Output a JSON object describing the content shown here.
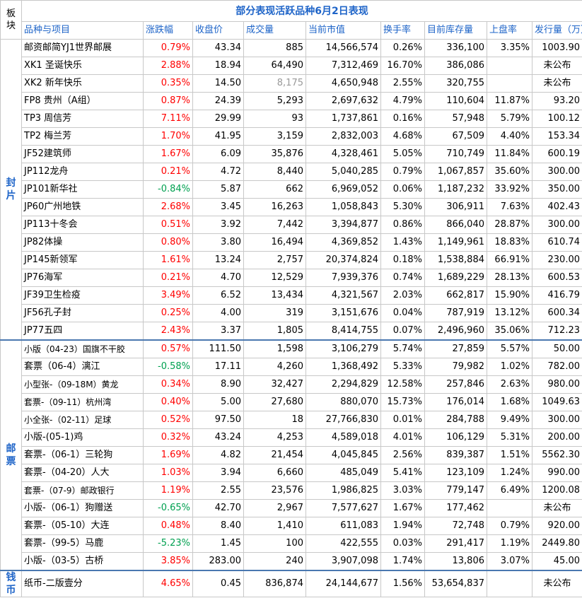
{
  "title": "部分表现活跃品种6月2日表现",
  "sector_header": "板块",
  "columns": [
    "品种与项目",
    "涨跌幅",
    "收盘价",
    "成交量",
    "当前市值",
    "换手率",
    "目前库存量",
    "上盘率",
    "发行量（万）"
  ],
  "sectors": [
    {
      "label": "封片",
      "rows": [
        {
          "name": "邮资邮简YJ1世界邮展",
          "change": "0.79%",
          "dir": "up",
          "close": "43.34",
          "volume": "885",
          "cap": "14,566,574",
          "turnover": "0.26%",
          "stock": "336,100",
          "listing": "3.35%",
          "issue": "1003.90"
        },
        {
          "name": "XK1 圣诞快乐",
          "change": "2.88%",
          "dir": "up",
          "close": "18.94",
          "volume": "64,490",
          "cap": "7,312,469",
          "turnover": "16.70%",
          "stock": "386,086",
          "listing": "",
          "issue": "未公布"
        },
        {
          "name": "XK2 新年快乐",
          "change": "0.35%",
          "dir": "up",
          "close": "14.50",
          "volume": "8,175",
          "volume_grey": true,
          "cap": "4,650,948",
          "turnover": "2.55%",
          "stock": "320,755",
          "listing": "",
          "issue": "未公布"
        },
        {
          "name": "FP8 贵州（A组）",
          "change": "0.87%",
          "dir": "up",
          "close": "24.39",
          "volume": "5,293",
          "cap": "2,697,632",
          "turnover": "4.79%",
          "stock": "110,604",
          "listing": "11.87%",
          "issue": "93.20"
        },
        {
          "name": "TP3 周信芳",
          "change": "7.11%",
          "dir": "up",
          "close": "29.99",
          "volume": "93",
          "cap": "1,737,861",
          "turnover": "0.16%",
          "stock": "57,948",
          "listing": "5.79%",
          "issue": "100.12"
        },
        {
          "name": "TP2 梅兰芳",
          "change": "1.70%",
          "dir": "up",
          "close": "41.95",
          "volume": "3,159",
          "cap": "2,832,003",
          "turnover": "4.68%",
          "stock": "67,509",
          "listing": "4.40%",
          "issue": "153.34"
        },
        {
          "name": "JF52建筑师",
          "change": "1.67%",
          "dir": "up",
          "close": "6.09",
          "volume": "35,876",
          "cap": "4,328,461",
          "turnover": "5.05%",
          "stock": "710,749",
          "listing": "11.84%",
          "issue": "600.19"
        },
        {
          "name": "JP112龙舟",
          "change": "0.21%",
          "dir": "up",
          "close": "4.72",
          "volume": "8,440",
          "cap": "5,040,285",
          "turnover": "0.79%",
          "stock": "1,067,857",
          "listing": "35.60%",
          "issue": "300.00"
        },
        {
          "name": "JP101新华社",
          "change": "-0.84%",
          "dir": "down",
          "close": "5.87",
          "volume": "662",
          "cap": "6,969,052",
          "turnover": "0.06%",
          "stock": "1,187,232",
          "listing": "33.92%",
          "issue": "350.00"
        },
        {
          "name": "JP60广州地铁",
          "change": "2.68%",
          "dir": "up",
          "close": "3.45",
          "volume": "16,263",
          "cap": "1,058,843",
          "turnover": "5.30%",
          "stock": "306,911",
          "listing": "7.63%",
          "issue": "402.43"
        },
        {
          "name": "JP113十冬会",
          "change": "0.51%",
          "dir": "up",
          "close": "3.92",
          "volume": "7,442",
          "cap": "3,394,877",
          "turnover": "0.86%",
          "stock": "866,040",
          "listing": "28.87%",
          "issue": "300.00"
        },
        {
          "name": "JP82体操",
          "change": "0.80%",
          "dir": "up",
          "close": "3.80",
          "volume": "16,494",
          "cap": "4,369,852",
          "turnover": "1.43%",
          "stock": "1,149,961",
          "listing": "18.83%",
          "issue": "610.74"
        },
        {
          "name": "JP145新领军",
          "change": "1.61%",
          "dir": "up",
          "close": "13.24",
          "volume": "2,757",
          "cap": "20,374,824",
          "turnover": "0.18%",
          "stock": "1,538,884",
          "listing": "66.91%",
          "issue": "230.00"
        },
        {
          "name": "JP76海军",
          "change": "0.21%",
          "dir": "up",
          "close": "4.70",
          "volume": "12,529",
          "cap": "7,939,376",
          "turnover": "0.74%",
          "stock": "1,689,229",
          "listing": "28.13%",
          "issue": "600.53"
        },
        {
          "name": "JF39卫生检疫",
          "change": "3.49%",
          "dir": "up",
          "close": "6.52",
          "volume": "13,434",
          "cap": "4,321,567",
          "turnover": "2.03%",
          "stock": "662,817",
          "listing": "15.90%",
          "issue": "416.79"
        },
        {
          "name": "JF56孔子封",
          "change": "0.25%",
          "dir": "up",
          "close": "4.00",
          "volume": "319",
          "cap": "3,151,676",
          "turnover": "0.04%",
          "stock": "787,919",
          "listing": "13.12%",
          "issue": "600.34"
        },
        {
          "name": "JP77五四",
          "change": "2.43%",
          "dir": "up",
          "close": "3.37",
          "volume": "1,805",
          "cap": "8,414,755",
          "turnover": "0.07%",
          "stock": "2,496,960",
          "listing": "35.06%",
          "issue": "712.23"
        }
      ]
    },
    {
      "label": "邮票",
      "rows": [
        {
          "name": "小版（04-23）国旗不干胶",
          "change": "0.57%",
          "dir": "up",
          "close": "111.50",
          "volume": "1,598",
          "cap": "3,106,279",
          "turnover": "5.74%",
          "stock": "27,859",
          "listing": "5.57%",
          "issue": "50.00"
        },
        {
          "name": "套票（06-4）漓江",
          "change": "-0.58%",
          "dir": "down",
          "close": "17.11",
          "volume": "4,260",
          "cap": "1,368,492",
          "turnover": "5.33%",
          "stock": "79,982",
          "listing": "1.02%",
          "issue": "782.00"
        },
        {
          "name": "小型张-（09-18M）黄龙",
          "change": "0.34%",
          "dir": "up",
          "close": "8.90",
          "volume": "32,427",
          "cap": "2,294,829",
          "turnover": "12.58%",
          "stock": "257,846",
          "listing": "2.63%",
          "issue": "980.00"
        },
        {
          "name": "套票-（09-11）杭州湾",
          "change": "0.40%",
          "dir": "up",
          "close": "5.00",
          "volume": "27,680",
          "cap": "880,070",
          "turnover": "15.73%",
          "stock": "176,014",
          "listing": "1.68%",
          "issue": "1049.63"
        },
        {
          "name": "小全张-（02-11）足球",
          "change": "0.52%",
          "dir": "up",
          "close": "97.50",
          "volume": "18",
          "cap": "27,766,830",
          "turnover": "0.01%",
          "stock": "284,788",
          "listing": "9.49%",
          "issue": "300.00"
        },
        {
          "name": "小版-(05-1)鸡",
          "change": "0.32%",
          "dir": "up",
          "close": "43.24",
          "volume": "4,253",
          "cap": "4,589,018",
          "turnover": "4.01%",
          "stock": "106,129",
          "listing": "5.31%",
          "issue": "200.00"
        },
        {
          "name": "套票-（06-1）三轮狗",
          "change": "1.69%",
          "dir": "up",
          "close": "4.82",
          "volume": "21,454",
          "cap": "4,045,845",
          "turnover": "2.56%",
          "stock": "839,387",
          "listing": "1.51%",
          "issue": "5562.30"
        },
        {
          "name": "套票-（04-20）人大",
          "change": "1.03%",
          "dir": "up",
          "close": "3.94",
          "volume": "6,660",
          "cap": "485,049",
          "turnover": "5.41%",
          "stock": "123,109",
          "listing": "1.24%",
          "issue": "990.00"
        },
        {
          "name": "套票-（07-9）邮政银行",
          "change": "1.19%",
          "dir": "up",
          "close": "2.55",
          "volume": "23,576",
          "cap": "1,986,825",
          "turnover": "3.03%",
          "stock": "779,147",
          "listing": "6.49%",
          "issue": "1200.08"
        },
        {
          "name": "小版-（06-1）狗赠送",
          "change": "-0.65%",
          "dir": "down",
          "close": "42.70",
          "volume": "2,967",
          "cap": "7,577,627",
          "turnover": "1.67%",
          "stock": "177,462",
          "listing": "",
          "issue": "未公布"
        },
        {
          "name": "套票-（05-10）大连",
          "change": "0.48%",
          "dir": "up",
          "close": "8.40",
          "volume": "1,410",
          "cap": "611,083",
          "turnover": "1.94%",
          "stock": "72,748",
          "listing": "0.79%",
          "issue": "920.00"
        },
        {
          "name": "套票-（99-5）马鹿",
          "change": "-5.23%",
          "dir": "down",
          "close": "1.45",
          "volume": "100",
          "cap": "422,555",
          "turnover": "0.03%",
          "stock": "291,417",
          "listing": "1.19%",
          "issue": "2449.80"
        },
        {
          "name": "小版-（03-5）古桥",
          "change": "3.85%",
          "dir": "up",
          "close": "283.00",
          "volume": "240",
          "cap": "3,907,098",
          "turnover": "1.74%",
          "stock": "13,806",
          "listing": "3.07%",
          "issue": "45.00"
        }
      ]
    },
    {
      "label": "钱币",
      "rows": [
        {
          "name": "纸币-二版壹分",
          "change": "4.65%",
          "dir": "up",
          "close": "0.45",
          "volume": "836,874",
          "cap": "24,144,677",
          "turnover": "1.56%",
          "stock": "53,654,837",
          "listing": "",
          "issue": "未公布"
        }
      ]
    }
  ]
}
